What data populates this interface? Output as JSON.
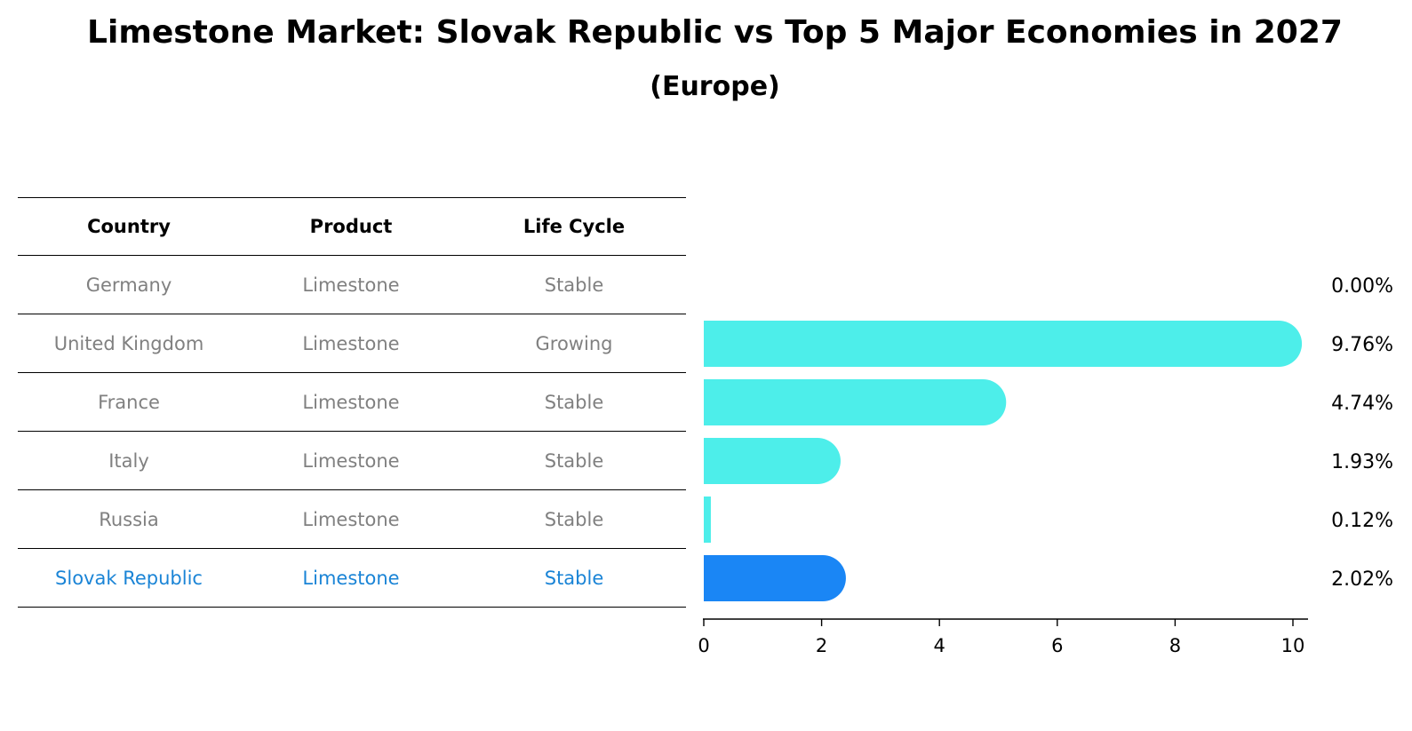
{
  "title": "Limestone Market: Slovak Republic vs Top 5 Major Economies in 2027",
  "subtitle": "(Europe)",
  "table": {
    "headers": [
      "Country",
      "Product",
      "Life Cycle"
    ],
    "rows": [
      {
        "country": "Germany",
        "product": "Limestone",
        "life_cycle": "Stable",
        "highlight": false
      },
      {
        "country": "United Kingdom",
        "product": "Limestone",
        "life_cycle": "Growing",
        "highlight": false
      },
      {
        "country": "France",
        "product": "Limestone",
        "life_cycle": "Stable",
        "highlight": false
      },
      {
        "country": "Italy",
        "product": "Limestone",
        "life_cycle": "Stable",
        "highlight": false
      },
      {
        "country": "Russia",
        "product": "Limestone",
        "life_cycle": "Stable",
        "highlight": false
      },
      {
        "country": "Slovak Republic",
        "product": "Limestone",
        "life_cycle": "Stable",
        "highlight": true
      }
    ]
  },
  "chart_data": {
    "type": "bar",
    "orientation": "horizontal",
    "categories": [
      "Germany",
      "United Kingdom",
      "France",
      "Italy",
      "Russia",
      "Slovak Republic"
    ],
    "values": [
      0.0,
      9.76,
      4.74,
      1.93,
      0.12,
      2.02
    ],
    "value_labels": [
      "0.00%",
      "9.76%",
      "4.74%",
      "1.93%",
      "0.12%",
      "2.02%"
    ],
    "xlim": [
      0,
      10.2
    ],
    "xticks": [
      "0",
      "2",
      "4",
      "6",
      "8",
      "10"
    ],
    "grid": false,
    "colors": {
      "default": "#4deeea",
      "highlight": "#1a86f5"
    },
    "highlight_index": 5
  }
}
